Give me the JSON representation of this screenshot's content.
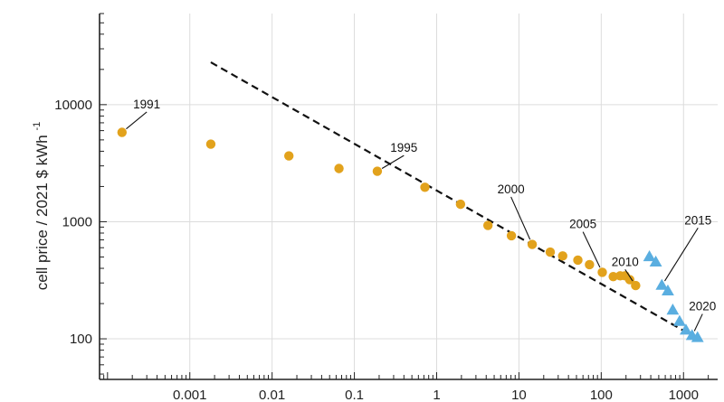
{
  "chart_data": {
    "type": "scatter",
    "title": "",
    "xlabel": "",
    "ylabel": "cell price / 2021 $ kWh",
    "ylabel_superscript": "-1",
    "x_scale": "log",
    "y_scale": "log",
    "xlim": [
      8e-05,
      2600
    ],
    "ylim": [
      45,
      60000
    ],
    "grid": true,
    "legend": "none",
    "x_ticks": [
      {
        "value": 0.001,
        "label": "0.001"
      },
      {
        "value": 0.01,
        "label": "0.01"
      },
      {
        "value": 0.1,
        "label": "0.1"
      },
      {
        "value": 1,
        "label": "1"
      },
      {
        "value": 10,
        "label": "10"
      },
      {
        "value": 100,
        "label": "100"
      },
      {
        "value": 1000,
        "label": "1000"
      }
    ],
    "y_ticks": [
      {
        "value": 100,
        "label": "100"
      },
      {
        "value": 1000,
        "label": "1000"
      },
      {
        "value": 10000,
        "label": "10000"
      }
    ],
    "colors": {
      "series_orange": "#e2a21c",
      "series_blue": "#5aaee0",
      "trend": "#111111",
      "grid": "#dcdcdc",
      "frame": "#222222"
    },
    "series": [
      {
        "marker": "circle",
        "color": "#e2a21c",
        "points": [
          {
            "x": 0.00015,
            "y": 5800
          },
          {
            "x": 0.0018,
            "y": 4600
          },
          {
            "x": 0.016,
            "y": 3650
          },
          {
            "x": 0.065,
            "y": 2850
          },
          {
            "x": 0.19,
            "y": 2700
          },
          {
            "x": 0.72,
            "y": 1970
          },
          {
            "x": 1.95,
            "y": 1410
          },
          {
            "x": 4.2,
            "y": 930
          },
          {
            "x": 8.1,
            "y": 760
          },
          {
            "x": 14.5,
            "y": 640
          },
          {
            "x": 24,
            "y": 550
          },
          {
            "x": 34,
            "y": 510
          },
          {
            "x": 52,
            "y": 470
          },
          {
            "x": 72,
            "y": 430
          },
          {
            "x": 103,
            "y": 370
          },
          {
            "x": 140,
            "y": 340
          },
          {
            "x": 170,
            "y": 345
          },
          {
            "x": 195,
            "y": 345
          },
          {
            "x": 222,
            "y": 320
          },
          {
            "x": 262,
            "y": 285
          }
        ]
      },
      {
        "marker": "triangle",
        "color": "#5aaee0",
        "points": [
          {
            "x": 385,
            "y": 500
          },
          {
            "x": 460,
            "y": 450
          },
          {
            "x": 545,
            "y": 285
          },
          {
            "x": 645,
            "y": 255
          },
          {
            "x": 740,
            "y": 175
          },
          {
            "x": 895,
            "y": 140
          },
          {
            "x": 1070,
            "y": 118
          },
          {
            "x": 1270,
            "y": 106
          },
          {
            "x": 1480,
            "y": 102
          }
        ]
      }
    ],
    "trend_line": {
      "style": "dashed",
      "color": "#111111",
      "points": [
        {
          "x": 0.0018,
          "y": 23000
        },
        {
          "x": 1500,
          "y": 100
        }
      ]
    },
    "annotations": [
      {
        "label": "1991",
        "at": {
          "x": 0.00015,
          "y": 5800
        },
        "text_at": {
          "x": 0.0003,
          "y": 9300
        }
      },
      {
        "label": "1995",
        "at": {
          "x": 0.19,
          "y": 2700
        },
        "text_at": {
          "x": 0.4,
          "y": 3950
        }
      },
      {
        "label": "2000",
        "at": {
          "x": 14.5,
          "y": 640
        },
        "text_at": {
          "x": 8,
          "y": 1750
        }
      },
      {
        "label": "2005",
        "at": {
          "x": 103,
          "y": 370
        },
        "text_at": {
          "x": 60,
          "y": 880
        }
      },
      {
        "label": "2010",
        "at": {
          "x": 262,
          "y": 285
        },
        "text_at": {
          "x": 195,
          "y": 420
        }
      },
      {
        "label": "2015",
        "at": {
          "x": 545,
          "y": 285
        },
        "text_at": {
          "x": 1500,
          "y": 950
        }
      },
      {
        "label": "2020",
        "at": {
          "x": 1270,
          "y": 106
        },
        "text_at": {
          "x": 1700,
          "y": 175
        }
      }
    ]
  }
}
